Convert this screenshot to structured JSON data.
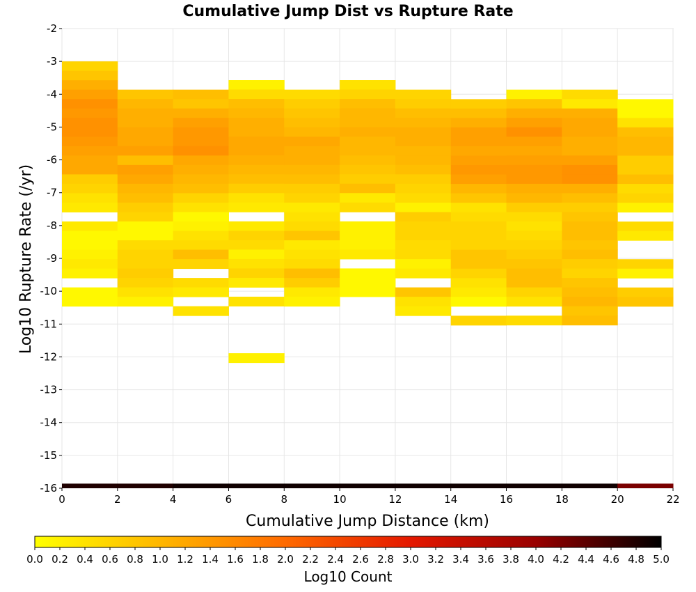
{
  "chart_data": {
    "type": "heatmap",
    "title": "Cumulative Jump Dist vs Rupture Rate",
    "xlabel": "Cumulative Jump Distance (km)",
    "ylabel": "Log10 Rupture Rate (/yr)",
    "xlim": [
      0,
      22
    ],
    "ylim": [
      -16,
      -2
    ],
    "x_ticks": [
      "0",
      "2",
      "4",
      "6",
      "8",
      "10",
      "12",
      "14",
      "16",
      "18",
      "20",
      "22"
    ],
    "y_ticks": [
      "-2",
      "-3",
      "-4",
      "-5",
      "-6",
      "-7",
      "-8",
      "-9",
      "-10",
      "-11",
      "-12",
      "-13",
      "-14",
      "-15",
      "-16"
    ],
    "x_bin_width": 2,
    "y_bin_height": 0.2868,
    "grid": true,
    "colorbar": {
      "label": "Log10 Count",
      "range": [
        0,
        5
      ],
      "tick_labels": [
        "0.0",
        "0.2",
        "0.4",
        "0.6",
        "0.8",
        "1.0",
        "1.2",
        "1.4",
        "1.6",
        "1.8",
        "2.0",
        "2.2",
        "2.4",
        "2.6",
        "2.8",
        "3.0",
        "3.2",
        "3.4",
        "3.6",
        "3.8",
        "4.0",
        "4.2",
        "4.4",
        "4.6",
        "4.8",
        "5.0"
      ],
      "colors": [
        "#ffff00",
        "#ffb700",
        "#ff6a00",
        "#e41800",
        "#990000",
        "#000000"
      ]
    },
    "columns": [
      {
        "x": 0,
        "y_top": -3.0,
        "values": [
          0.6,
          0.8,
          1.1,
          1.3,
          1.5,
          1.4,
          1.5,
          1.5,
          1.4,
          1.3,
          1.2,
          1.2,
          0.7,
          0.6,
          0.4,
          0.3,
          null,
          0.3,
          0.1,
          0.1,
          0.2,
          0.3,
          0.2,
          null,
          0.1,
          0.1
        ]
      },
      {
        "x": 2,
        "y_top": -3.86,
        "values": [
          0.8,
          1.0,
          1.1,
          1.1,
          1.2,
          1.2,
          1.3,
          0.9,
          1.3,
          1.2,
          1.0,
          0.9,
          0.7,
          0.6,
          0.1,
          0.1,
          0.5,
          0.6,
          0.6,
          0.7,
          0.6,
          0.4,
          0.2
        ]
      },
      {
        "x": 4,
        "y_top": -3.86,
        "values": [
          0.9,
          0.8,
          1.1,
          1.3,
          1.4,
          1.4,
          1.5,
          1.2,
          1.1,
          1.0,
          0.9,
          0.6,
          0.4,
          0.1,
          0.2,
          0.4,
          0.5,
          0.9,
          0.6,
          null,
          0.5,
          0.3,
          null,
          0.4
        ]
      },
      {
        "x": 6,
        "y_top": -3.57,
        "values": [
          0.2,
          0.5,
          0.9,
          1.0,
          1.1,
          1.1,
          1.2,
          1.2,
          1.1,
          1.0,
          0.9,
          0.7,
          0.4,
          0.3,
          null,
          0.3,
          0.6,
          0.5,
          0.2,
          0.4,
          0.6,
          0.3,
          null,
          0.4,
          null,
          null,
          null,
          null,
          null,
          0.2
        ]
      },
      {
        "x": 8,
        "y_top": -3.86,
        "values": [
          0.5,
          0.7,
          0.8,
          0.9,
          1.0,
          1.2,
          1.1,
          1.1,
          1.0,
          0.9,
          0.7,
          0.6,
          0.3,
          0.4,
          0.5,
          0.8,
          0.3,
          0.4,
          0.5,
          0.9,
          0.7,
          0.3,
          0.2
        ]
      },
      {
        "x": 10,
        "y_top": -3.57,
        "values": [
          0.4,
          0.6,
          0.9,
          1.0,
          1.0,
          1.1,
          1.0,
          1.0,
          0.9,
          0.8,
          0.7,
          0.9,
          0.3,
          0.5,
          null,
          0.2,
          0.2,
          0.2,
          0.3,
          null,
          0.1,
          0.1,
          0.1
        ]
      },
      {
        "x": 12,
        "y_top": -3.86,
        "values": [
          0.6,
          0.7,
          0.9,
          1.0,
          1.1,
          1.1,
          1.0,
          1.0,
          0.9,
          0.7,
          0.6,
          0.5,
          0.2,
          0.7,
          0.6,
          0.6,
          0.5,
          0.5,
          0.2,
          0.3,
          null,
          0.8,
          0.4,
          0.3
        ]
      },
      {
        "x": 14,
        "y_top": -4.15,
        "values": [
          0.7,
          0.9,
          1.1,
          1.3,
          1.3,
          1.2,
          1.3,
          1.4,
          1.3,
          1.0,
          0.8,
          0.4,
          0.5,
          0.6,
          0.6,
          0.6,
          0.8,
          0.8,
          0.6,
          0.4,
          0.3,
          0.1,
          null,
          0.6
        ]
      },
      {
        "x": 16,
        "y_top": -3.86,
        "values": [
          0.2,
          0.8,
          1.1,
          1.3,
          1.5,
          1.3,
          1.2,
          1.3,
          1.4,
          1.4,
          1.1,
          1.0,
          0.7,
          0.5,
          0.4,
          0.5,
          0.6,
          0.7,
          0.8,
          0.9,
          0.9,
          0.6,
          0.4,
          null,
          0.5
        ]
      },
      {
        "x": 18,
        "y_top": -3.86,
        "values": [
          0.5,
          0.3,
          1.1,
          1.2,
          1.2,
          1.1,
          1.1,
          1.3,
          1.5,
          1.5,
          1.1,
          0.9,
          0.7,
          0.8,
          0.9,
          0.9,
          0.8,
          0.9,
          0.7,
          0.6,
          0.8,
          0.9,
          1.0,
          0.8,
          0.9
        ]
      },
      {
        "x": 20,
        "y_top": -4.15,
        "values": [
          0.1,
          0.1,
          0.4,
          0.9,
          1.0,
          1.0,
          0.7,
          0.7,
          0.9,
          0.5,
          0.6,
          0.2,
          null,
          0.5,
          0.3,
          null,
          null,
          0.6,
          0.2,
          null,
          0.7,
          0.8
        ]
      }
    ],
    "bottom_row": {
      "y_top": -15.86,
      "y_bottom": -16.0,
      "values": [
        4.8,
        4.8,
        4.9,
        4.9,
        4.9,
        4.9,
        4.9,
        4.9,
        4.9,
        4.9,
        4.2
      ]
    }
  }
}
